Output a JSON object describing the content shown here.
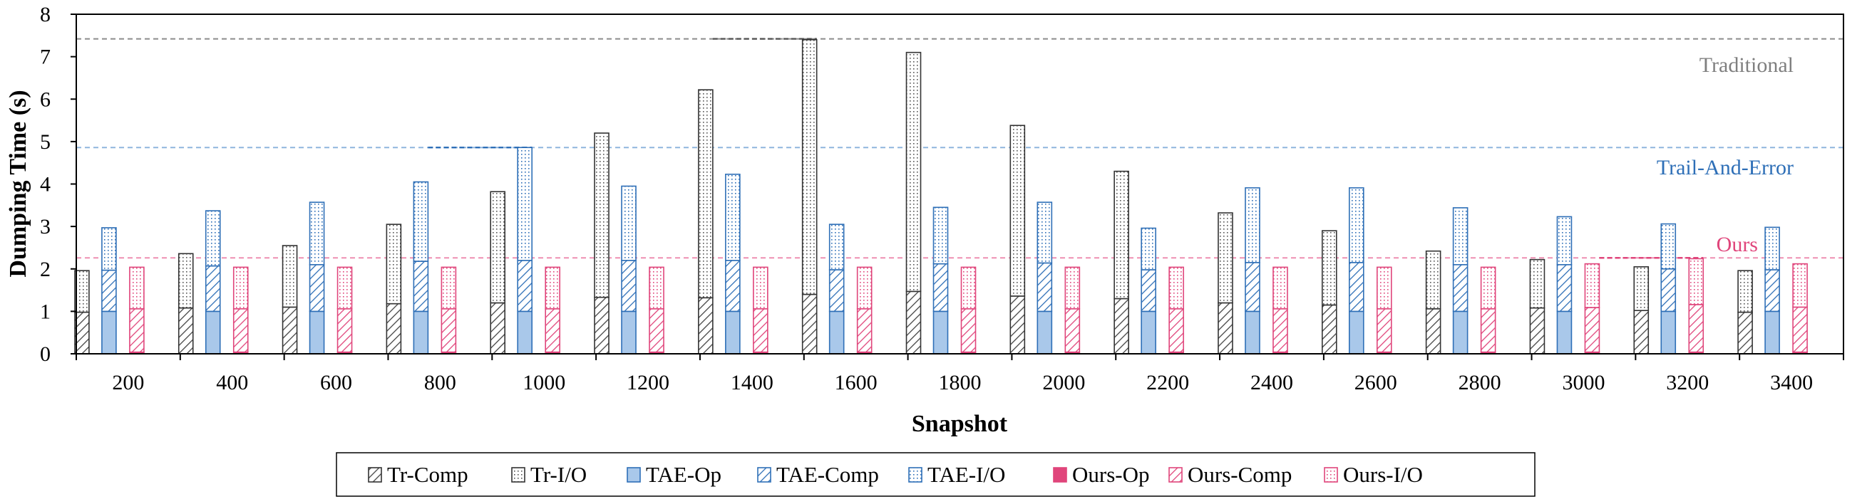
{
  "chart_data": {
    "type": "bar",
    "stacked": true,
    "xlabel": "Snapshot",
    "ylabel": "Dumping Time (s)",
    "ylim": [
      0,
      8
    ],
    "yticks": [
      0,
      1,
      2,
      3,
      4,
      5,
      6,
      7,
      8
    ],
    "categories": [
      "200",
      "400",
      "600",
      "800",
      "1000",
      "1200",
      "1400",
      "1600",
      "1800",
      "2000",
      "2200",
      "2400",
      "2600",
      "2800",
      "3000",
      "3200",
      "3400"
    ],
    "groups": [
      {
        "name": "Traditional",
        "color": "#555555",
        "components": [
          {
            "name": "Tr-Comp",
            "pattern": "hatch",
            "values": [
              0.98,
              1.08,
              1.1,
              1.18,
              1.2,
              1.33,
              1.32,
              1.4,
              1.47,
              1.36,
              1.3,
              1.2,
              1.15,
              1.06,
              1.08,
              1.02,
              0.98
            ]
          },
          {
            "name": "Tr-I/O",
            "pattern": "dots",
            "values": [
              0.98,
              1.28,
              1.45,
              1.87,
              2.62,
              3.87,
              4.9,
              6.0,
              5.63,
              4.02,
              3.0,
              2.12,
              1.75,
              1.36,
              1.14,
              1.03,
              0.98
            ]
          }
        ]
      },
      {
        "name": "Trail-And-Error",
        "color": "#2e6fb7",
        "components": [
          {
            "name": "TAE-Op",
            "pattern": "solid",
            "values": [
              1.0,
              1.0,
              1.0,
              1.0,
              1.0,
              1.0,
              1.0,
              1.0,
              1.0,
              1.0,
              1.0,
              1.0,
              1.0,
              1.0,
              1.0,
              1.0,
              1.0
            ]
          },
          {
            "name": "TAE-Comp",
            "pattern": "hatch",
            "values": [
              0.97,
              1.07,
              1.1,
              1.18,
              1.2,
              1.2,
              1.2,
              0.98,
              1.12,
              1.14,
              0.98,
              1.15,
              1.15,
              1.1,
              1.1,
              1.0,
              0.98
            ]
          },
          {
            "name": "TAE-I/O",
            "pattern": "dots",
            "values": [
              1.0,
              1.3,
              1.47,
              1.87,
              2.66,
              1.75,
              2.03,
              1.07,
              1.33,
              1.43,
              0.98,
              1.76,
              1.76,
              1.34,
              1.13,
              1.06,
              1.0
            ]
          }
        ]
      },
      {
        "name": "Ours",
        "color": "#e0457b",
        "components": [
          {
            "name": "Ours-Op",
            "pattern": "solid",
            "values": [
              0.04,
              0.04,
              0.04,
              0.04,
              0.04,
              0.04,
              0.04,
              0.04,
              0.04,
              0.04,
              0.04,
              0.04,
              0.04,
              0.04,
              0.04,
              0.04,
              0.04
            ]
          },
          {
            "name": "Ours-Comp",
            "pattern": "hatch",
            "values": [
              1.02,
              1.02,
              1.02,
              1.02,
              1.02,
              1.02,
              1.02,
              1.02,
              1.02,
              1.02,
              1.02,
              1.02,
              1.02,
              1.02,
              1.05,
              1.12,
              1.06
            ]
          },
          {
            "name": "Ours-I/O",
            "pattern": "dots",
            "values": [
              0.98,
              0.98,
              0.98,
              0.98,
              0.98,
              0.98,
              0.98,
              0.98,
              0.98,
              0.98,
              0.98,
              0.98,
              0.98,
              0.98,
              1.03,
              1.08,
              1.02
            ]
          }
        ]
      }
    ],
    "reference_lines": [
      {
        "label": "Traditional",
        "value": 7.42,
        "color": "#8c8c8c",
        "peak_category": "1600",
        "dark_color": "#555555"
      },
      {
        "label": "Trail-And-Error",
        "value": 4.86,
        "color": "#8fb5dd",
        "peak_category": "1000",
        "dark_color": "#2e6fb7"
      },
      {
        "label": "Ours",
        "value": 2.26,
        "color": "#ee8fb2",
        "peak_category": "3200",
        "dark_color": "#e0457b"
      }
    ],
    "legend": {
      "placement": "bottom-center",
      "items": [
        "Tr-Comp",
        "Tr-I/O",
        "TAE-Op",
        "TAE-Comp",
        "TAE-I/O",
        "Ours-Op",
        "Ours-Comp",
        "Ours-I/O"
      ]
    }
  }
}
